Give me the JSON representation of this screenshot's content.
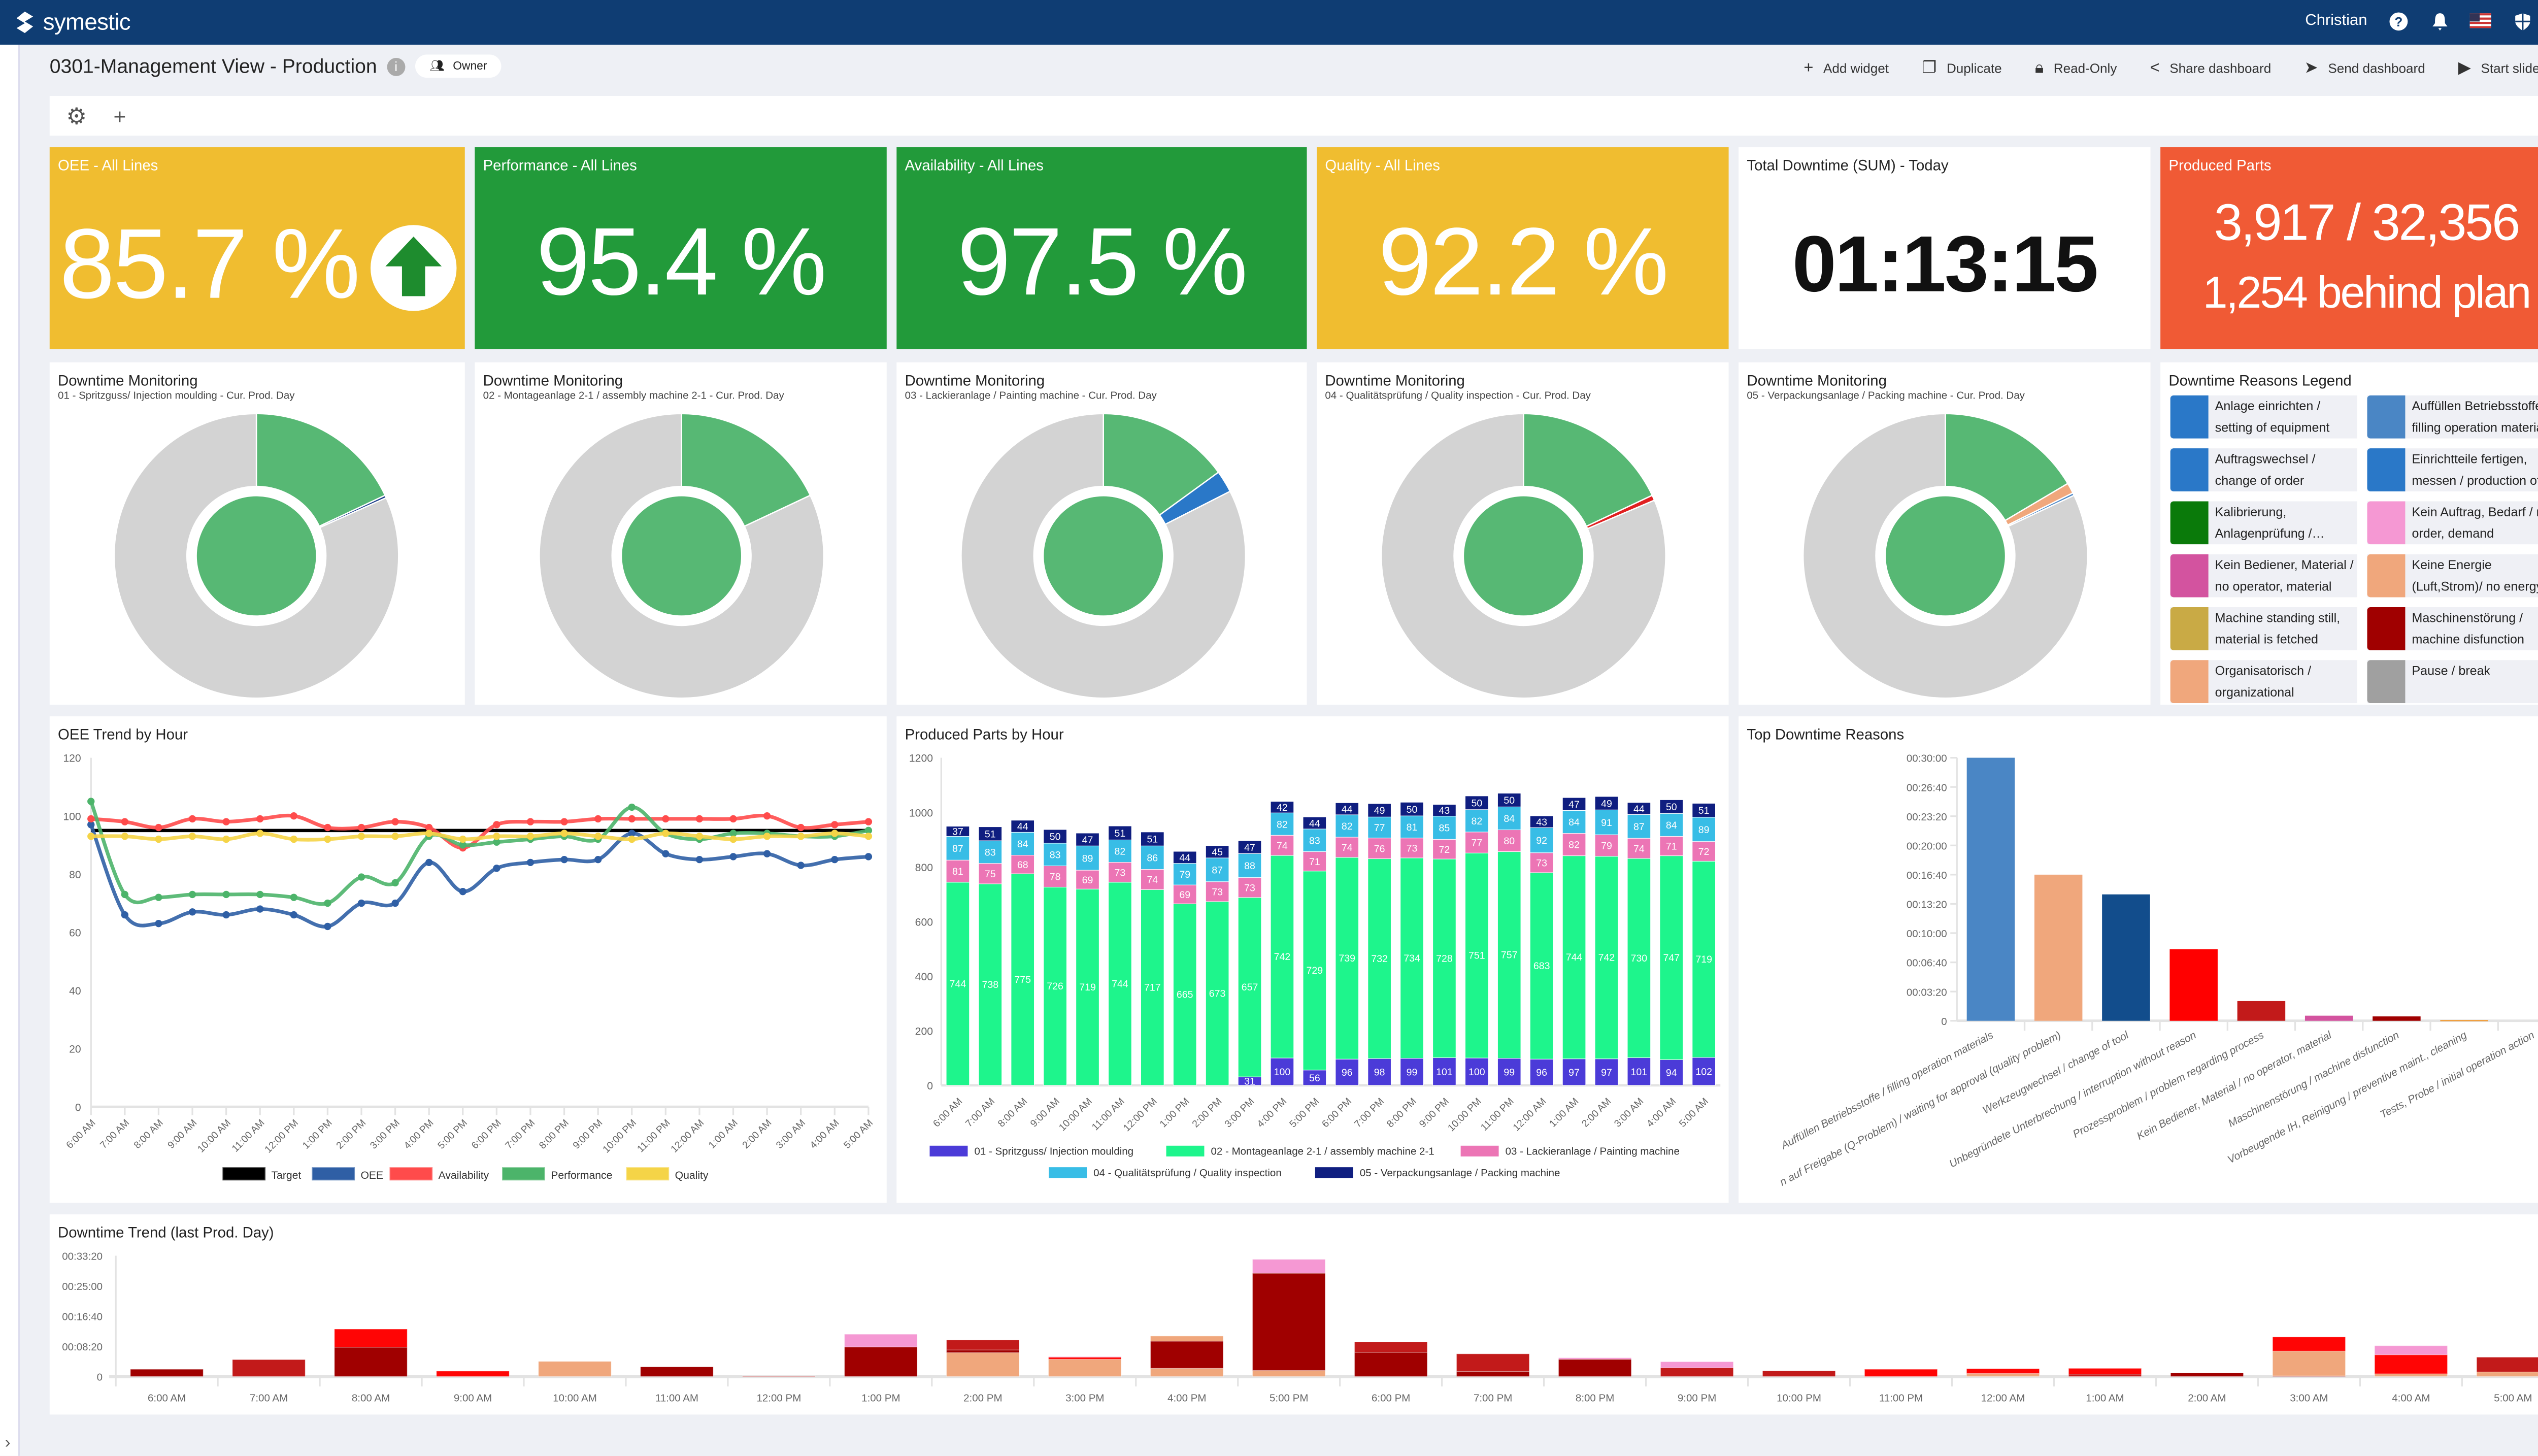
{
  "app": {
    "brand": "symestic",
    "user": "Christian"
  },
  "page": {
    "title": "0301-Management View - Production",
    "owner_label": "Owner"
  },
  "actions": [
    {
      "label": "Add widget",
      "icon": "plus-icon"
    },
    {
      "label": "Duplicate",
      "icon": "copy-icon"
    },
    {
      "label": "Read-Only",
      "icon": "lock-icon"
    },
    {
      "label": "Share dashboard",
      "icon": "share-icon"
    },
    {
      "label": "Send dashboard",
      "icon": "send-icon"
    },
    {
      "label": "Start slideshow",
      "icon": "play-icon"
    }
  ],
  "kpis": [
    {
      "title": "OEE - All Lines",
      "value": "85.7 %",
      "bg": "#f0bd30",
      "trend": "up"
    },
    {
      "title": "Performance - All Lines",
      "value": "95.4 %",
      "bg": "#229a3a"
    },
    {
      "title": "Availability - All Lines",
      "value": "97.5 %",
      "bg": "#229a3a"
    },
    {
      "title": "Quality - All Lines",
      "value": "92.2 %",
      "bg": "#f0bd30"
    },
    {
      "title": "Total Downtime (SUM) - Today",
      "value": "01:13:15",
      "bg": "#ffffff"
    },
    {
      "title": "Produced Parts",
      "value": "3,917 / 32,356",
      "value2": "1,254 behind plan",
      "bg": "#f05a35"
    }
  ],
  "donuts": [
    {
      "title": "Downtime Monitoring",
      "subtitle": "01 - Spritzguss/ Injection moulding - Cur. Prod. Day",
      "segments": [
        {
          "color": "#57b874",
          "value": 0.18
        },
        {
          "color": "#1a3d8a",
          "value": 0.003
        },
        {
          "color": "#d3d3d3",
          "value": 0.817
        }
      ]
    },
    {
      "title": "Downtime Monitoring",
      "subtitle": "02 - Montageanlage 2-1 / assembly machine 2-1 - Cur. Prod. Day",
      "segments": [
        {
          "color": "#57b874",
          "value": 0.18
        },
        {
          "color": "#d3d3d3",
          "value": 0.82
        }
      ]
    },
    {
      "title": "Downtime Monitoring",
      "subtitle": "03 - Lackieranlage / Painting machine - Cur. Prod. Day",
      "segments": [
        {
          "color": "#57b874",
          "value": 0.15
        },
        {
          "color": "#2a78c8",
          "value": 0.025
        },
        {
          "color": "#d3d3d3",
          "value": 0.825
        }
      ]
    },
    {
      "title": "Downtime Monitoring",
      "subtitle": "04 - Qualitätsprüfung / Quality inspection - Cur. Prod. Day",
      "segments": [
        {
          "color": "#57b874",
          "value": 0.18
        },
        {
          "color": "#e02020",
          "value": 0.006
        },
        {
          "color": "#d3d3d3",
          "value": 0.814
        }
      ]
    },
    {
      "title": "Downtime Monitoring",
      "subtitle": "05 - Verpackungsanlage / Packing machine - Cur. Prod. Day",
      "segments": [
        {
          "color": "#57b874",
          "value": 0.165
        },
        {
          "color": "#f0a77c",
          "value": 0.012
        },
        {
          "color": "#4a86c5",
          "value": 0.003
        },
        {
          "color": "#d3d3d3",
          "value": 0.82
        }
      ]
    }
  ],
  "legend": {
    "title": "Downtime Reasons Legend",
    "items": [
      {
        "label": "Anlage einrichten / setting of equipment",
        "color": "#2a78c8"
      },
      {
        "label": "Auffüllen Betriebsstoffe / filling operation materials",
        "color": "#4a86c5"
      },
      {
        "label": "Auftragswechsel / change of order",
        "color": "#2a78c8"
      },
      {
        "label": "Einrichtteile fertigen, messen / production of setup parts",
        "color": "#2a78c8"
      },
      {
        "label": "Kalibrierung, Anlagenprüfung / calibration",
        "color": "#0a7a0a"
      },
      {
        "label": "Kein Auftrag, Bedarf / no order, demand",
        "color": "#f598d3"
      },
      {
        "label": "Kein Bediener, Material / no operator, material",
        "color": "#d3539f"
      },
      {
        "label": "Keine Energie (Luft,Strom)/ no energy",
        "color": "#f0a77c"
      },
      {
        "label": "Machine standing still, material is fetched",
        "color": "#c9aa45"
      },
      {
        "label": "Maschinenstörung / machine disfunction",
        "color": "#a00000"
      },
      {
        "label": "Organisatorisch / organizational",
        "color": "#f0a77c"
      },
      {
        "label": "Pause / break",
        "color": "#a0a0a0"
      }
    ]
  },
  "hours": [
    "6:00 AM",
    "7:00 AM",
    "8:00 AM",
    "9:00 AM",
    "10:00 AM",
    "11:00 AM",
    "12:00 PM",
    "1:00 PM",
    "2:00 PM",
    "3:00 PM",
    "4:00 PM",
    "5:00 PM",
    "6:00 PM",
    "7:00 PM",
    "8:00 PM",
    "9:00 PM",
    "10:00 PM",
    "11:00 PM",
    "12:00 AM",
    "1:00 AM",
    "2:00 AM",
    "3:00 AM",
    "4:00 AM",
    "5:00 AM"
  ],
  "chart_data": [
    {
      "id": "oee",
      "type": "line",
      "title": "OEE Trend by Hour",
      "ylim": [
        0,
        120
      ],
      "yticks": [
        "0",
        "20",
        "40",
        "60",
        "80",
        "100",
        "120"
      ],
      "series": [
        {
          "name": "Target",
          "color": "#000000",
          "values": [
            95,
            95,
            95,
            95,
            95,
            95,
            95,
            95,
            95,
            95,
            95,
            95,
            95,
            95,
            95,
            95,
            95,
            95,
            95,
            95,
            95,
            95,
            95,
            95
          ],
          "markers": false
        },
        {
          "name": "OEE",
          "color": "#2f5fa5",
          "values": [
            97,
            66,
            63,
            67,
            66,
            68,
            66,
            62,
            70,
            70,
            84,
            74,
            82,
            84,
            85,
            85,
            94,
            87,
            85,
            86,
            87,
            83,
            85,
            86
          ]
        },
        {
          "name": "Availability",
          "color": "#ff4b4b",
          "values": [
            99,
            98,
            96,
            99,
            98,
            99,
            100,
            96,
            96,
            98,
            96,
            89,
            97,
            98,
            98,
            99,
            99,
            99,
            99,
            99,
            100,
            96,
            97,
            98
          ]
        },
        {
          "name": "Performance",
          "color": "#4cb46a",
          "values": [
            105,
            73,
            72,
            73,
            73,
            73,
            72,
            70,
            79,
            77,
            93,
            90,
            91,
            92,
            93,
            92,
            103,
            94,
            92,
            94,
            94,
            93,
            93,
            95
          ]
        },
        {
          "name": "Quality",
          "color": "#f5d447",
          "values": [
            93,
            93,
            92,
            93,
            92,
            94,
            92,
            92,
            93,
            93,
            94,
            92,
            93,
            93,
            94,
            93,
            92,
            94,
            93,
            92,
            93,
            93,
            94,
            93
          ]
        }
      ],
      "legend": "bottom"
    },
    {
      "id": "parts",
      "type": "bar",
      "stacked": true,
      "title": "Produced Parts by Hour",
      "ylim": [
        0,
        1200
      ],
      "yticks": [
        "0",
        "200",
        "400",
        "600",
        "800",
        "1000",
        "1200"
      ],
      "series": [
        {
          "name": "01 - Spritzguss/ Injection moulding",
          "color": "#4b3bd8",
          "values": [
            0,
            0,
            0,
            0,
            0,
            0,
            0,
            0,
            0,
            31,
            100,
            56,
            96,
            98,
            99,
            101,
            100,
            99,
            96,
            97,
            97,
            101,
            94,
            102
          ]
        },
        {
          "name": "02 - Montageanlage 2-1 / assembly machine 2-1",
          "color": "#1ef58c",
          "values": [
            744,
            738,
            775,
            726,
            719,
            744,
            717,
            665,
            673,
            657,
            742,
            729,
            739,
            732,
            734,
            728,
            751,
            757,
            683,
            744,
            742,
            730,
            747,
            719
          ]
        },
        {
          "name": "03 - Lackieranlage / Painting machine",
          "color": "#ec75b5",
          "values": [
            81,
            75,
            68,
            78,
            69,
            73,
            74,
            69,
            73,
            73,
            74,
            71,
            74,
            76,
            73,
            72,
            77,
            80,
            73,
            82,
            79,
            74,
            71,
            72
          ]
        },
        {
          "name": "04 - Qualitätsprüfung / Quality inspection",
          "color": "#38bde6",
          "values": [
            87,
            83,
            84,
            83,
            89,
            82,
            86,
            79,
            87,
            88,
            82,
            83,
            82,
            77,
            81,
            85,
            82,
            84,
            92,
            84,
            91,
            87,
            84,
            89
          ]
        },
        {
          "name": "05 - Verpackungsanlage / Packing machine",
          "color": "#0f1e80",
          "values": [
            37,
            51,
            44,
            50,
            47,
            51,
            51,
            44,
            45,
            47,
            42,
            44,
            44,
            49,
            50,
            43,
            50,
            50,
            43,
            47,
            49,
            44,
            50,
            51
          ]
        }
      ],
      "legend": "bottom"
    },
    {
      "id": "top",
      "type": "bar",
      "title": "Top Downtime Reasons",
      "ylim": [
        0,
        1800
      ],
      "yunit": "seconds",
      "yticks": [
        "0",
        "00:03:20",
        "00:06:40",
        "00:10:00",
        "00:13:20",
        "00:16:40",
        "00:20:00",
        "00:23:20",
        "00:26:40",
        "00:30:00"
      ],
      "categories": [
        "Auffüllen Betriebsstoffe / filling operation materials",
        "n auf Freigabe (Q-Problem) / waiting for approval (quality problem)",
        "Werkzeugwechsel / change of tool",
        "Unbegründete Unterbrechung / interruption without reason",
        "Prozessproblem / problem regarding process",
        "Kein Bediener, Material / no operator, material",
        "Maschinenstörung / machine disfunction",
        "Vorbeugende IH, Reinigung / preventive maint., cleaning",
        "Tests, Probe / initial operation action"
      ],
      "values": [
        1800,
        1000,
        865,
        490,
        135,
        35,
        30,
        6,
        0
      ],
      "colors": [
        "#4a86c5",
        "#f0a77c",
        "#124d8c",
        "#ff0000",
        "#c21a1a",
        "#d3539f",
        "#a00000",
        "#f0a040",
        "#cccccc"
      ]
    },
    {
      "id": "trend",
      "type": "bar",
      "stacked": true,
      "title": "Downtime Trend (last Prod. Day)",
      "ylim": [
        0,
        2000
      ],
      "yunit": "seconds",
      "yticks": [
        "0",
        "00:08:20",
        "00:16:40",
        "00:25:00",
        "00:33:20"
      ],
      "palette": {
        "D": "#a00000",
        "M": "#c21a1a",
        "R": "#ff0505",
        "S": "#f0a77c",
        "P": "#f598d3"
      },
      "bars": [
        [
          [
            "D",
            120
          ]
        ],
        [
          [
            "M",
            280
          ]
        ],
        [
          [
            "D",
            485
          ],
          [
            "R",
            300
          ]
        ],
        [
          [
            "R",
            90
          ]
        ],
        [
          [
            "S",
            250
          ]
        ],
        [
          [
            "D",
            160
          ]
        ],
        [
          [
            "M",
            12
          ]
        ],
        [
          [
            "D",
            490
          ],
          [
            "P",
            210
          ]
        ],
        [
          [
            "S",
            395
          ],
          [
            "D",
            45
          ],
          [
            "M",
            165
          ]
        ],
        [
          [
            "S",
            285
          ],
          [
            "R",
            35
          ],
          [
            "P",
            8
          ]
        ],
        [
          [
            "S",
            135
          ],
          [
            "D",
            450
          ],
          [
            "S",
            85
          ]
        ],
        [
          [
            "S",
            100
          ],
          [
            "D",
            1610
          ],
          [
            "P",
            230
          ]
        ],
        [
          [
            "D",
            400
          ],
          [
            "M",
            175
          ]
        ],
        [
          [
            "D",
            85
          ],
          [
            "M",
            290
          ]
        ],
        [
          [
            "D",
            285
          ],
          [
            "P",
            25
          ]
        ],
        [
          [
            "M",
            145
          ],
          [
            "P",
            100
          ]
        ],
        [
          [
            "M",
            95
          ]
        ],
        [
          [
            "R",
            120
          ]
        ],
        [
          [
            "S",
            50
          ],
          [
            "R",
            80
          ]
        ],
        [
          [
            "M",
            40
          ],
          [
            "R",
            95
          ]
        ],
        [
          [
            "D",
            60
          ]
        ],
        [
          [
            "D",
            10
          ],
          [
            "S",
            410
          ],
          [
            "R",
            235
          ]
        ],
        [
          [
            "S",
            45
          ],
          [
            "R",
            315
          ],
          [
            "P",
            150
          ]
        ],
        [
          [
            "S",
            75
          ],
          [
            "M",
            245
          ]
        ]
      ]
    }
  ]
}
